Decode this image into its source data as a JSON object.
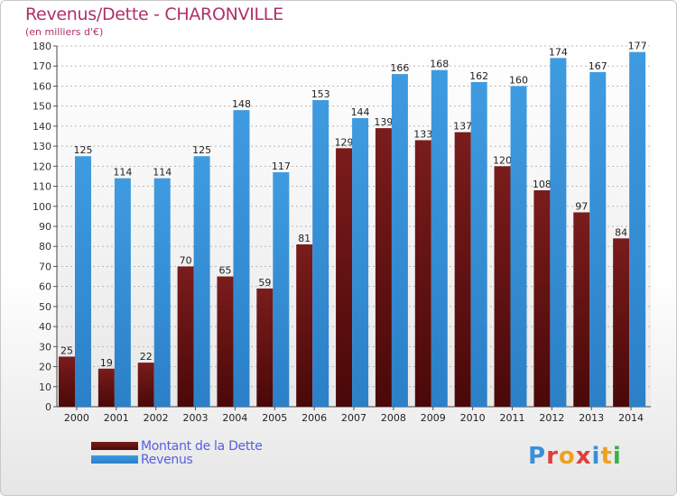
{
  "title": "Revenus/Dette - CHARONVILLE",
  "subtitle": "(en milliers d'€)",
  "colors": {
    "debt": "#7a1c1c",
    "revenue": "#3f9be0",
    "title": "#b0306a",
    "legend_text": "#5560e0"
  },
  "logo": {
    "text": "Proxiti",
    "letters": [
      "P",
      "r",
      "o",
      "x",
      "i",
      "t",
      "i"
    ],
    "colors": [
      "#3a8fd8",
      "#e23d3d",
      "#f0a020",
      "#e23d3d",
      "#3a8fd8",
      "#f0a020",
      "#3ab04a"
    ]
  },
  "chart_data": {
    "type": "bar",
    "title": "Revenus/Dette - CHARONVILLE",
    "subtitle": "(en milliers d'€)",
    "categories": [
      "2000",
      "2001",
      "2002",
      "2003",
      "2004",
      "2005",
      "2006",
      "2007",
      "2008",
      "2009",
      "2010",
      "2011",
      "2012",
      "2013",
      "2014"
    ],
    "series": [
      {
        "name": "Montant de la Dette",
        "values": [
          25,
          19,
          22,
          70,
          65,
          59,
          81,
          129,
          139,
          133,
          137,
          120,
          108,
          97,
          84
        ]
      },
      {
        "name": "Revenus",
        "values": [
          125,
          114,
          114,
          125,
          148,
          117,
          153,
          144,
          166,
          168,
          162,
          160,
          174,
          167,
          177
        ]
      }
    ],
    "ylim": [
      0,
      180
    ],
    "yticks": [
      0,
      10,
      20,
      30,
      40,
      50,
      60,
      70,
      80,
      90,
      100,
      110,
      120,
      130,
      140,
      150,
      160,
      170,
      180
    ],
    "grid": true,
    "legend": "bottom-left"
  }
}
